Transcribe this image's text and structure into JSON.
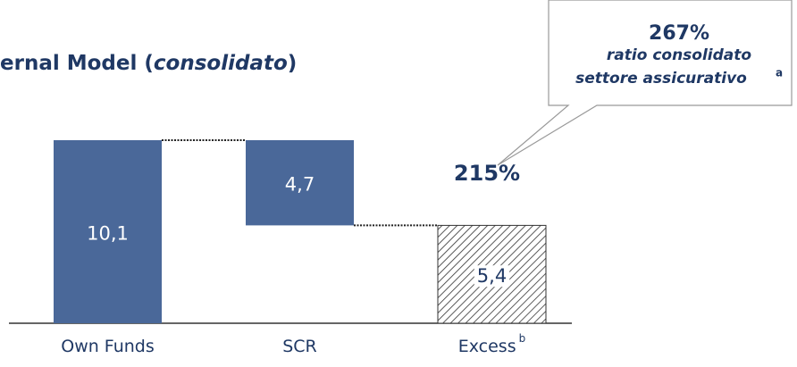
{
  "chart_data": {
    "type": "waterfall",
    "title": [
      "ernal Model (",
      "consolidato",
      ")"
    ],
    "categories": [
      "Own Funds",
      "SCR",
      "Excess"
    ],
    "category_notes": [
      null,
      null,
      "b"
    ],
    "values": [
      10.1,
      4.7,
      5.4
    ],
    "value_labels": [
      "10,1",
      "4,7",
      "5,4"
    ],
    "color": "#4a6899",
    "annotations": {
      "ratio": "215%",
      "callout": {
        "value": "267%",
        "lines": [
          "ratio consolidato",
          "settore assicurativo"
        ],
        "note": "a"
      }
    }
  }
}
